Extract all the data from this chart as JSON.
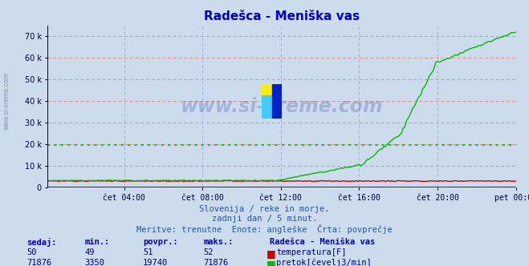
{
  "title": "Radešca - Meniška vas",
  "bg_color": "#ccdcec",
  "plot_bg_color": "#ccdcec",
  "grid_color_h": "#e88888",
  "grid_color_v": "#aaaadd",
  "avg_line_color": "#00bb00",
  "avg_value": 19740,
  "x_labels": [
    "čet 04:00",
    "čet 08:00",
    "čet 12:00",
    "čet 16:00",
    "čet 20:00",
    "pet 00:00"
  ],
  "x_ticks_norm": [
    0.1667,
    0.3333,
    0.5,
    0.6667,
    0.8333,
    1.0
  ],
  "total_points": 288,
  "ylim": [
    0,
    75000
  ],
  "yticks": [
    0,
    10000,
    20000,
    30000,
    40000,
    50000,
    60000,
    70000
  ],
  "temp_color": "#cc0000",
  "flow_color": "#00bb00",
  "temp_sedaj": 50,
  "temp_min": 49,
  "temp_povpr": 51,
  "temp_max": 52,
  "flow_sedaj": 71876,
  "flow_min": 3350,
  "flow_povpr": 19740,
  "flow_max": 71876,
  "subtitle1": "Slovenija / reke in morje.",
  "subtitle2": "zadnji dan / 5 minut.",
  "subtitle3": "Meritve: trenutne  Enote: angleške  Črta: povprečje",
  "temp_label": "temperatura[F]",
  "flow_label": "pretok[čevelj3/min]",
  "watermark": "www.si-vreme.com",
  "watermark_color": "#2244aa",
  "title_color": "#0000cc",
  "axis_color_h": "#cc0000",
  "axis_color_v": "#0000bb",
  "tick_color": "#000033",
  "subtitle_color": "#2255aa",
  "table_header_color": "#0000cc",
  "table_value_color": "#000088",
  "left_label_color": "#336699"
}
